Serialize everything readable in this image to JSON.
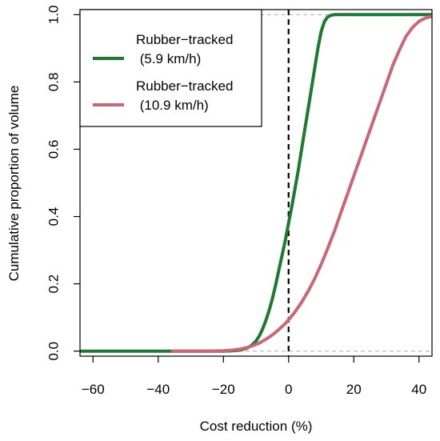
{
  "chart_data": {
    "type": "line",
    "title": "",
    "xlabel": "Cost reduction (%)",
    "ylabel": "Cumulative proportion of volume",
    "xlim": [
      -64,
      44
    ],
    "ylim": [
      -0.015,
      1.015
    ],
    "xticks": [
      -60,
      -40,
      -20,
      0,
      20,
      40
    ],
    "xtick_labels": [
      "−60",
      "−40",
      "−20",
      "0",
      "20",
      "40"
    ],
    "yticks": [
      0.0,
      0.2,
      0.4,
      0.6,
      0.8,
      1.0
    ],
    "ytick_labels": [
      "0.0",
      "0.2",
      "0.4",
      "0.6",
      "0.8",
      "1.0"
    ],
    "grid": false,
    "legend_position": "top-left",
    "reference_lines": {
      "vertical_x": 0,
      "horizontal_y": [
        0,
        1
      ]
    },
    "series": [
      {
        "name": "Rubber−tracked\n (5.9 km/h)",
        "color": "#1b7a30",
        "x": [
          -64,
          -20,
          -17,
          -15,
          -13,
          -12,
          -11,
          -10,
          -9,
          -8,
          -7,
          -6,
          -5,
          -4,
          -3,
          -2,
          -1,
          0,
          1,
          2,
          3,
          4,
          5,
          6,
          7,
          8,
          9,
          10,
          11,
          12,
          13,
          14,
          15,
          20,
          44
        ],
        "y": [
          0.0,
          0.0,
          0.001,
          0.003,
          0.008,
          0.013,
          0.02,
          0.03,
          0.045,
          0.065,
          0.09,
          0.12,
          0.155,
          0.195,
          0.24,
          0.285,
          0.33,
          0.38,
          0.43,
          0.485,
          0.54,
          0.6,
          0.66,
          0.72,
          0.78,
          0.84,
          0.9,
          0.95,
          0.98,
          0.993,
          0.998,
          1.0,
          1.0,
          1.0,
          1.0
        ]
      },
      {
        "name": "Rubber−tracked\n (10.9 km/h)",
        "color": "#cc6677",
        "x": [
          -36,
          -30,
          -25,
          -20,
          -17,
          -15,
          -13,
          -11,
          -9,
          -7,
          -5,
          -3,
          -1,
          0,
          2,
          4,
          6,
          8,
          10,
          12,
          14,
          16,
          18,
          20,
          22,
          24,
          26,
          28,
          30,
          32,
          34,
          36,
          38,
          40,
          42,
          44
        ],
        "y": [
          0.0,
          0.0,
          0.0,
          0.001,
          0.003,
          0.006,
          0.01,
          0.016,
          0.024,
          0.035,
          0.048,
          0.064,
          0.082,
          0.093,
          0.117,
          0.145,
          0.178,
          0.215,
          0.258,
          0.305,
          0.355,
          0.41,
          0.465,
          0.52,
          0.575,
          0.63,
          0.685,
          0.74,
          0.795,
          0.85,
          0.895,
          0.935,
          0.962,
          0.98,
          0.99,
          0.995
        ]
      }
    ]
  }
}
